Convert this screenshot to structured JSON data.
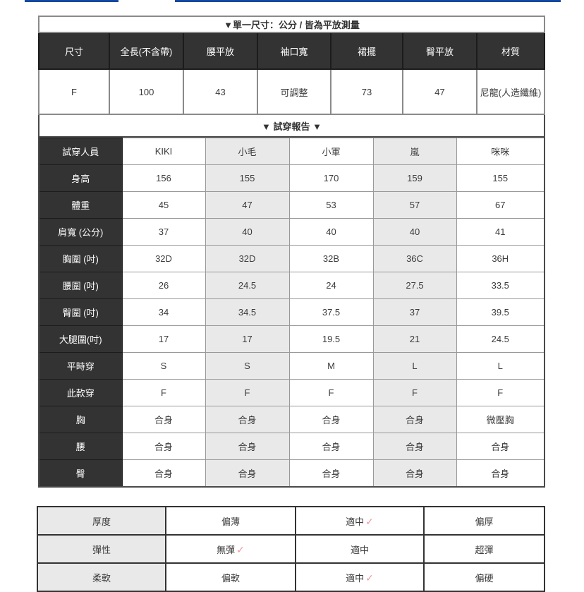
{
  "top_links": {
    "note_color": "#15489f"
  },
  "size_table": {
    "caption": "▼單一尺寸：公分 / 皆為平放測量",
    "headers": [
      "尺寸",
      "全長(不含帶)",
      "腰平放",
      "袖口寬",
      "裙擺",
      "臀平放",
      "材質"
    ],
    "values": [
      "F",
      "100",
      "43",
      "可調整",
      "73",
      "47",
      "尼龍(人造纖維)"
    ]
  },
  "fit_report": {
    "title": "▼ 試穿報告 ▼",
    "rows": [
      {
        "label": "試穿人員",
        "values": [
          "KIKI",
          "小毛",
          "小軍",
          "嵐",
          "咪咪"
        ]
      },
      {
        "label": "身高",
        "values": [
          "156",
          "155",
          "170",
          "159",
          "155"
        ]
      },
      {
        "label": "體重",
        "values": [
          "45",
          "47",
          "53",
          "57",
          "67"
        ]
      },
      {
        "label": "肩寬 (公分)",
        "values": [
          "37",
          "40",
          "40",
          "40",
          "41"
        ]
      },
      {
        "label": "胸圍 (吋)",
        "values": [
          "32D",
          "32D",
          "32B",
          "36C",
          "36H"
        ]
      },
      {
        "label": "腰圍 (吋)",
        "values": [
          "26",
          "24.5",
          "24",
          "27.5",
          "33.5"
        ]
      },
      {
        "label": "臀圍 (吋)",
        "values": [
          "34",
          "34.5",
          "37.5",
          "37",
          "39.5"
        ]
      },
      {
        "label": "大腿圍(吋)",
        "values": [
          "17",
          "17",
          "19.5",
          "21",
          "24.5"
        ]
      },
      {
        "label": "平時穿",
        "values": [
          "S",
          "S",
          "M",
          "L",
          "L"
        ]
      },
      {
        "label": "此款穿",
        "values": [
          "F",
          "F",
          "F",
          "F",
          "F"
        ]
      },
      {
        "label": "胸",
        "values": [
          "合身",
          "合身",
          "合身",
          "合身",
          "微壓胸"
        ]
      },
      {
        "label": "腰",
        "values": [
          "合身",
          "合身",
          "合身",
          "合身",
          "合身"
        ]
      },
      {
        "label": "臀",
        "values": [
          "合身",
          "合身",
          "合身",
          "合身",
          "合身"
        ]
      }
    ]
  },
  "feel_table": {
    "check_mark": "✓",
    "check_color": "#f2939f",
    "rows": [
      {
        "label": "厚度",
        "options": [
          "偏薄",
          "適中",
          "偏厚"
        ],
        "checked_index": 1
      },
      {
        "label": "彈性",
        "options": [
          "無彈",
          "適中",
          "超彈"
        ],
        "checked_index": 0
      },
      {
        "label": "柔軟",
        "options": [
          "偏軟",
          "適中",
          "偏硬"
        ],
        "checked_index": 1
      }
    ]
  },
  "colors": {
    "header_bg": "#333333",
    "header_text": "#ffffff",
    "alt_column_bg": "#e9e9e9",
    "label_column_bg": "#e9e9e9",
    "link_blue": "#15489f"
  }
}
